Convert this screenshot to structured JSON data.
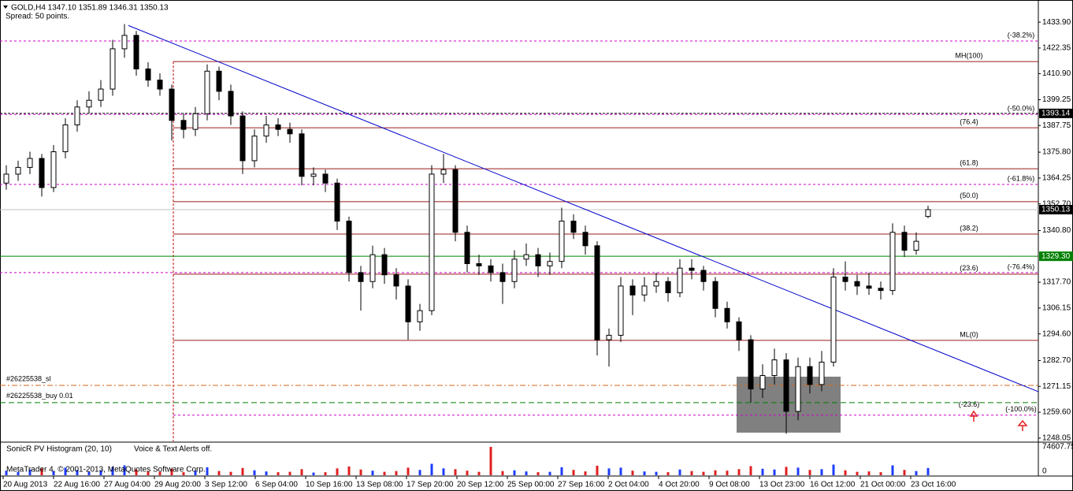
{
  "chart_data": {
    "type": "candlestick",
    "title": "GOLD,H4  1347.10 1351.89 1346.31 1350.13",
    "subtitle": "Spread: 50 points.",
    "ylim": [
      1246.6,
      1443.8
    ],
    "yticks": [
      {
        "value": 1433.9,
        "label": "1433.90"
      },
      {
        "value": 1422.35,
        "label": "1422.35"
      },
      {
        "value": 1410.9,
        "label": "1410.90"
      },
      {
        "value": 1399.25,
        "label": "1399.25"
      },
      {
        "value": 1387.75,
        "label": "1387.75"
      },
      {
        "value": 1375.8,
        "label": "1375.80"
      },
      {
        "value": 1364.25,
        "label": "1364.25"
      },
      {
        "value": 1352.7,
        "label": "1352.70"
      },
      {
        "value": 1340.8,
        "label": "1340.80"
      },
      {
        "value": 1317.7,
        "label": "1317.70"
      },
      {
        "value": 1306.15,
        "label": "1306.15"
      },
      {
        "value": 1294.6,
        "label": "1294.60"
      },
      {
        "value": 1282.7,
        "label": "1282.70"
      },
      {
        "value": 1271.15,
        "label": "1271.15"
      },
      {
        "value": 1259.6,
        "label": "1259.60"
      },
      {
        "value": 1248.05,
        "label": "1248.05"
      }
    ],
    "xlabels": [
      "20 Aug 2013",
      "22 Aug 16:00",
      "27 Aug 04:00",
      "29 Aug 20:00",
      "3 Sep 12:00",
      "6 Sep 04:00",
      "10 Sep 16:00",
      "13 Sep 08:00",
      "17 Sep 20:00",
      "20 Sep 12:00",
      "25 Sep 00:00",
      "27 Sep 16:00",
      "2 Oct 04:00",
      "4 Oct 20:00",
      "9 Oct 08:00",
      "13 Oct 23:00",
      "16 Oct 12:00",
      "21 Oct 00:00",
      "23 Oct 16:00"
    ],
    "ohlc": [
      [
        1362,
        1370,
        1359,
        1366
      ],
      [
        1366,
        1372,
        1363,
        1369
      ],
      [
        1369,
        1376,
        1366,
        1373
      ],
      [
        1373,
        1375,
        1356,
        1360
      ],
      [
        1360,
        1379,
        1358,
        1376
      ],
      [
        1376,
        1391,
        1373,
        1388
      ],
      [
        1388,
        1399,
        1385,
        1396
      ],
      [
        1396,
        1403,
        1393,
        1399
      ],
      [
        1399,
        1408,
        1396,
        1404
      ],
      [
        1404,
        1426,
        1401,
        1422
      ],
      [
        1422,
        1433,
        1418,
        1428
      ],
      [
        1428,
        1430,
        1410,
        1413
      ],
      [
        1413,
        1416,
        1405,
        1408
      ],
      [
        1408,
        1411,
        1401,
        1404
      ],
      [
        1404,
        1406,
        1381,
        1390
      ],
      [
        1390,
        1393,
        1382,
        1386
      ],
      [
        1386,
        1396,
        1383,
        1393
      ],
      [
        1393,
        1415,
        1390,
        1412
      ],
      [
        1412,
        1414,
        1399,
        1403
      ],
      [
        1403,
        1406,
        1388,
        1392
      ],
      [
        1392,
        1394,
        1366,
        1372
      ],
      [
        1372,
        1386,
        1369,
        1383
      ],
      [
        1383,
        1392,
        1380,
        1388
      ],
      [
        1388,
        1391,
        1383,
        1386
      ],
      [
        1386,
        1389,
        1380,
        1384
      ],
      [
        1384,
        1386,
        1361,
        1365
      ],
      [
        1365,
        1369,
        1361,
        1366
      ],
      [
        1366,
        1368,
        1358,
        1362
      ],
      [
        1362,
        1364,
        1341,
        1345
      ],
      [
        1345,
        1347,
        1318,
        1322
      ],
      [
        1322,
        1325,
        1305,
        1318
      ],
      [
        1318,
        1334,
        1315,
        1330
      ],
      [
        1330,
        1333,
        1317,
        1321
      ],
      [
        1321,
        1324,
        1310,
        1316
      ],
      [
        1316,
        1319,
        1292,
        1300
      ],
      [
        1300,
        1308,
        1296,
        1305
      ],
      [
        1305,
        1370,
        1303,
        1366
      ],
      [
        1366,
        1375,
        1362,
        1368
      ],
      [
        1368,
        1370,
        1336,
        1340
      ],
      [
        1340,
        1343,
        1322,
        1326
      ],
      [
        1326,
        1330,
        1321,
        1325
      ],
      [
        1325,
        1328,
        1318,
        1322
      ],
      [
        1322,
        1326,
        1308,
        1318
      ],
      [
        1318,
        1332,
        1315,
        1328
      ],
      [
        1328,
        1335,
        1325,
        1330
      ],
      [
        1330,
        1333,
        1320,
        1325
      ],
      [
        1325,
        1331,
        1321,
        1327
      ],
      [
        1327,
        1351,
        1324,
        1345
      ],
      [
        1345,
        1348,
        1337,
        1340
      ],
      [
        1340,
        1343,
        1330,
        1334
      ],
      [
        1334,
        1336,
        1285,
        1292
      ],
      [
        1292,
        1297,
        1280,
        1294
      ],
      [
        1294,
        1320,
        1291,
        1316
      ],
      [
        1316,
        1319,
        1303,
        1312
      ],
      [
        1312,
        1320,
        1309,
        1316
      ],
      [
        1316,
        1322,
        1313,
        1318
      ],
      [
        1318,
        1320,
        1309,
        1313
      ],
      [
        1313,
        1328,
        1311,
        1324
      ],
      [
        1324,
        1328,
        1319,
        1323
      ],
      [
        1323,
        1325,
        1314,
        1318
      ],
      [
        1318,
        1320,
        1302,
        1306
      ],
      [
        1306,
        1309,
        1297,
        1300
      ],
      [
        1300,
        1302,
        1287,
        1292
      ],
      [
        1292,
        1294,
        1264,
        1270
      ],
      [
        1270,
        1281,
        1266,
        1276
      ],
      [
        1276,
        1288,
        1272,
        1283
      ],
      [
        1283,
        1286,
        1250,
        1260
      ],
      [
        1260,
        1284,
        1256,
        1280
      ],
      [
        1280,
        1284,
        1268,
        1272
      ],
      [
        1272,
        1287,
        1269,
        1282
      ],
      [
        1282,
        1324,
        1280,
        1320
      ],
      [
        1320,
        1327,
        1314,
        1318
      ],
      [
        1318,
        1321,
        1312,
        1316
      ],
      [
        1316,
        1322,
        1312,
        1315
      ],
      [
        1315,
        1318,
        1310,
        1314
      ],
      [
        1314,
        1344,
        1312,
        1340
      ],
      [
        1340,
        1343,
        1329,
        1332
      ],
      [
        1332,
        1340,
        1330,
        1336
      ],
      [
        1347.1,
        1351.89,
        1346.31,
        1350.13
      ]
    ],
    "levels": [
      {
        "label": "MH(100)",
        "value": 1416.3,
        "color": "#9b1c1c",
        "style": "fib"
      },
      {
        "label": "(76.4)",
        "value": 1386.7,
        "color": "#9b1c1c",
        "style": "fib"
      },
      {
        "label": "(61.8)",
        "value": 1368.4,
        "color": "#9b1c1c",
        "style": "fib"
      },
      {
        "label": "(50.0)",
        "value": 1353.7,
        "color": "#9b1c1c",
        "style": "fib"
      },
      {
        "label": "(38.2)",
        "value": 1339.2,
        "color": "#9b1c1c",
        "style": "fib"
      },
      {
        "label": "(23.6)",
        "value": 1321.3,
        "color": "#9b1c1c",
        "style": "fib"
      },
      {
        "label": "ML(0)",
        "value": 1291.7,
        "color": "#9b1c1c",
        "style": "fib"
      },
      {
        "label": "(-23.6)",
        "value": 1263.0,
        "color": "#9b1c1c",
        "style": "fiblabel"
      },
      {
        "label": "(-38.2%)",
        "value": 1425.5,
        "color": "#cc00cc",
        "style": "ext"
      },
      {
        "label": "(-50.0%)",
        "value": 1392.7,
        "color": "#cc00cc",
        "style": "ext"
      },
      {
        "label": "(-61.8%)",
        "value": 1361.4,
        "color": "#cc00cc",
        "style": "ext"
      },
      {
        "label": "(-76.4%)",
        "value": 1322.0,
        "color": "#cc00cc",
        "style": "ext"
      },
      {
        "label": "(-100.0%)",
        "value": 1258.3,
        "color": "#cc00cc",
        "style": "ext"
      }
    ],
    "order_lines": [
      {
        "label": "#26225538_sl",
        "value": 1271.6,
        "color": "#d2691e",
        "dash": "7 3 2 3"
      },
      {
        "label": "#26225538_buy 0.01",
        "value": 1263.9,
        "color": "#008000",
        "dash": "7 4"
      }
    ],
    "price_marks": [
      {
        "value": 1393.14,
        "label": "1393.14",
        "color": "#000000",
        "line": "#000000"
      },
      {
        "value": 1350.13,
        "label": "1350.13",
        "color": "#000000",
        "line": "#c0c0c0"
      },
      {
        "value": 1329.3,
        "label": "1329.30",
        "color": "#008000",
        "line": "#008000"
      }
    ],
    "trendline": [
      1432.4,
      1268.8
    ],
    "zone": [
      1275.5,
      1250.5
    ],
    "indicator": {
      "title": "SonicR PV Histogram (20, 10)",
      "note": "Voice & Text Alerts off.",
      "ylim": [
        0,
        74607.75
      ],
      "yticks": [
        74607.75,
        0
      ],
      "up_color": "#1e3cff",
      "down_color": "#e02020",
      "values": [
        12000,
        9000,
        15000,
        18000,
        11000,
        20000,
        14000,
        9000,
        13000,
        22000,
        26000,
        15000,
        10000,
        9000,
        17000,
        8000,
        12000,
        21000,
        11000,
        9000,
        19000,
        13000,
        10000,
        8000,
        9000,
        16000,
        7000,
        8000,
        18000,
        23000,
        15000,
        12000,
        9000,
        11000,
        20000,
        14000,
        30000,
        18000,
        16000,
        12000,
        9000,
        74607.75,
        11000,
        13000,
        10000,
        8000,
        9000,
        21000,
        14000,
        10000,
        25000,
        18000,
        20000,
        12000,
        10000,
        9000,
        8000,
        15000,
        11000,
        9000,
        13000,
        12000,
        16000,
        24000,
        17000,
        15000,
        22000,
        20000,
        14000,
        16000,
        28000,
        13000,
        9000,
        10000,
        8000,
        26000,
        14000,
        11000,
        19000
      ]
    },
    "watermark": "MetaTrader 4, © 2001-2013, MetaQuotes Software Corp."
  }
}
